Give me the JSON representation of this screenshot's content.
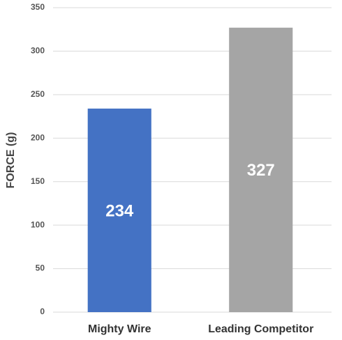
{
  "chart_data": {
    "type": "bar",
    "y_label": "FORCE (g)",
    "categories": [
      "Mighty Wire",
      "Leading Competitor"
    ],
    "values": [
      234,
      327
    ],
    "colors": [
      "#4472c4",
      "#a5a5a5"
    ],
    "ylim": [
      0,
      350
    ],
    "yticks": [
      0,
      50,
      100,
      150,
      200,
      250,
      300,
      350
    ],
    "grid": true
  }
}
